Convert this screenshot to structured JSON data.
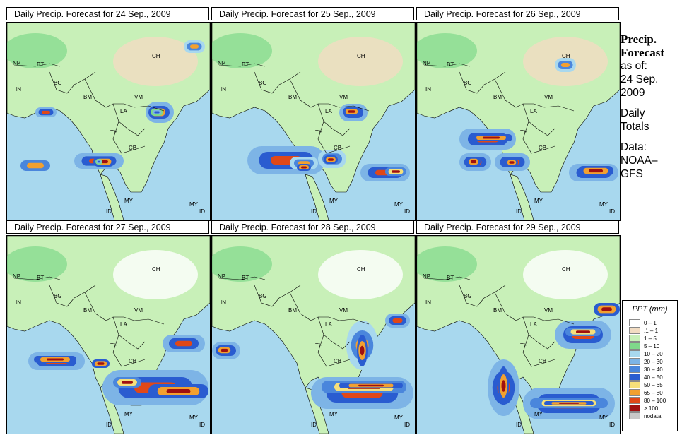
{
  "panels": [
    {
      "title": "Daily Precip. Forecast for  24 Sep., 2009"
    },
    {
      "title": "Daily Precip. Forecast for  25 Sep., 2009"
    },
    {
      "title": "Daily Precip. Forecast for  26 Sep., 2009"
    },
    {
      "title": "Daily Precip. Forecast for  27 Sep., 2009"
    },
    {
      "title": "Daily Precip. Forecast for  28 Sep., 2009"
    },
    {
      "title": "Daily Precip. Forecast for  29 Sep., 2009"
    }
  ],
  "country_labels": {
    "ch": "CH",
    "np": "NP",
    "bt": "BT",
    "bg": "BG",
    "in": "IN",
    "bm": "BM",
    "vm": "VM",
    "la": "LA",
    "th": "TH",
    "cb": "CB",
    "my1": "MY",
    "my2": "MY",
    "id1": "ID",
    "id2": "ID"
  },
  "sidebar": {
    "title1": "Precip.",
    "title2": "Forecast",
    "asof": "as of:",
    "date1": "24 Sep.",
    "date2": "2009",
    "daily1": "Daily",
    "daily2": "Totals",
    "data1": "Data:",
    "data2": "NOAA–",
    "data3": "GFS"
  },
  "legend": {
    "title": "PPT (mm)",
    "items": [
      {
        "label": "0 – 1",
        "color": "#ffffff"
      },
      {
        "label": ".1 – 1",
        "color": "#f2dcc2"
      },
      {
        "label": "1 – 5",
        "color": "#c8f0b8"
      },
      {
        "label": "5 – 10",
        "color": "#7fd88a"
      },
      {
        "label": "10 – 20",
        "color": "#a8d8ee"
      },
      {
        "label": "20 – 30",
        "color": "#7db4e6"
      },
      {
        "label": "30 – 40",
        "color": "#4a86dc"
      },
      {
        "label": "40 – 50",
        "color": "#2a5cd0"
      },
      {
        "label": "50 – 65",
        "color": "#f6e07a"
      },
      {
        "label": "65 – 80",
        "color": "#f2a030"
      },
      {
        "label": "80 – 100",
        "color": "#e04818"
      },
      {
        "label": "> 100",
        "color": "#a01010"
      },
      {
        "label": "nodata",
        "color": "#c8c8c8"
      }
    ]
  }
}
